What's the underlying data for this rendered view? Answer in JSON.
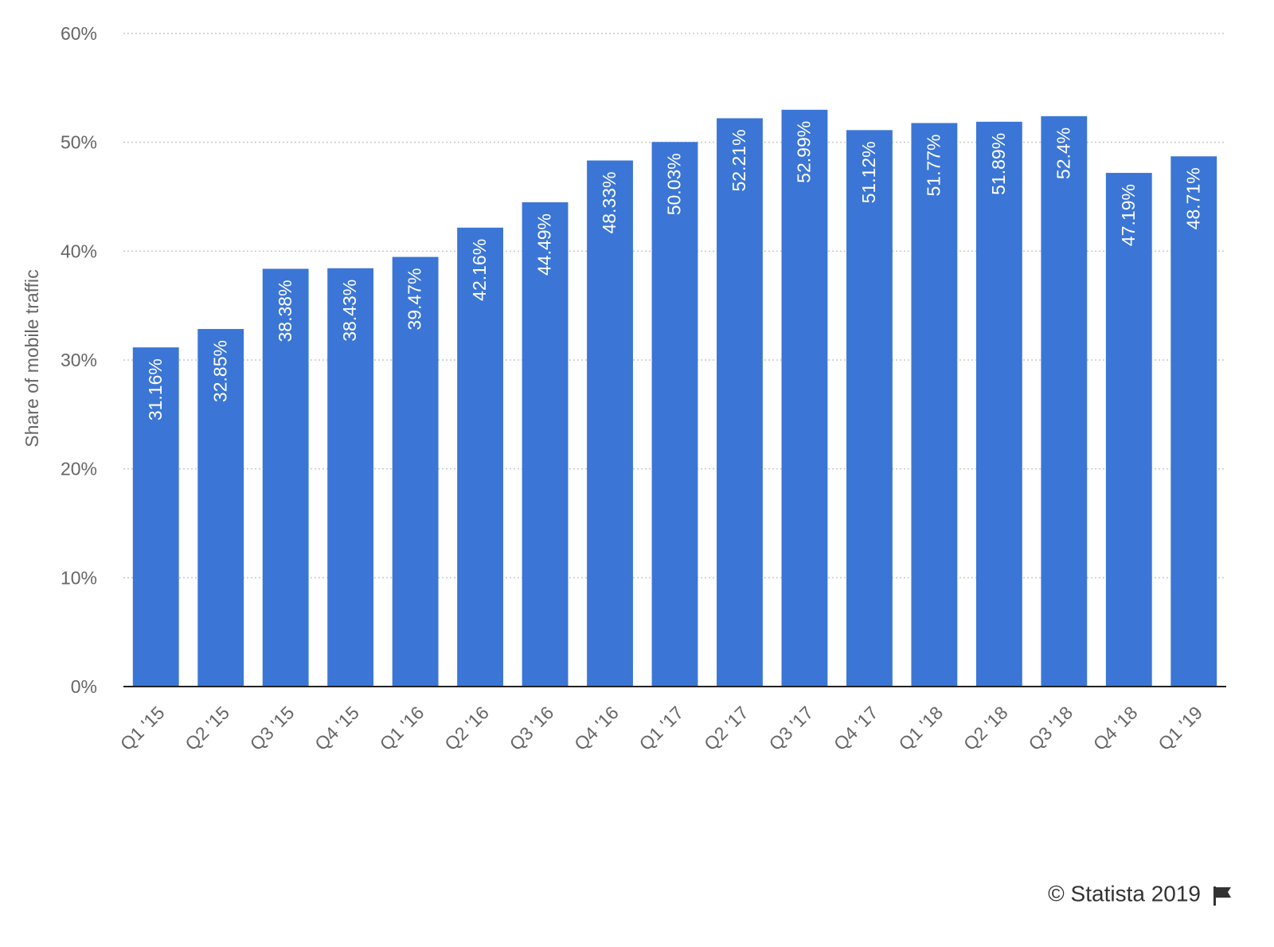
{
  "chart_data": {
    "type": "bar",
    "y_axis_label": "Share of mobile traffic",
    "categories": [
      "Q1 '15",
      "Q2 '15",
      "Q3 '15",
      "Q4 '15",
      "Q1 '16",
      "Q2 '16",
      "Q3 '16",
      "Q4 '16",
      "Q1 '17",
      "Q2 '17",
      "Q3 '17",
      "Q4 '17",
      "Q1 '18",
      "Q2 '18",
      "Q3 '18",
      "Q4 '18",
      "Q1 '19"
    ],
    "values": [
      31.16,
      32.85,
      38.38,
      38.43,
      39.47,
      42.16,
      44.49,
      48.33,
      50.03,
      52.21,
      52.99,
      51.12,
      51.77,
      51.89,
      52.4,
      47.19,
      48.71
    ],
    "value_labels": [
      "31.16%",
      "32.85%",
      "38.38%",
      "38.43%",
      "39.47%",
      "42.16%",
      "44.49%",
      "48.33%",
      "50.03%",
      "52.21%",
      "52.99%",
      "51.12%",
      "51.77%",
      "51.89%",
      "52.4%",
      "47.19%",
      "48.71%"
    ],
    "color": "#3b76d6",
    "ylim": [
      0,
      60
    ],
    "yticks": [
      {
        "value": 0,
        "label": "0%"
      },
      {
        "value": 10,
        "label": "10%"
      },
      {
        "value": 20,
        "label": "20%"
      },
      {
        "value": 30,
        "label": "30%"
      },
      {
        "value": 40,
        "label": "40%"
      },
      {
        "value": 50,
        "label": "50%"
      },
      {
        "value": 60,
        "label": "60%"
      }
    ],
    "grid": true,
    "source": "© Statista 2019"
  }
}
